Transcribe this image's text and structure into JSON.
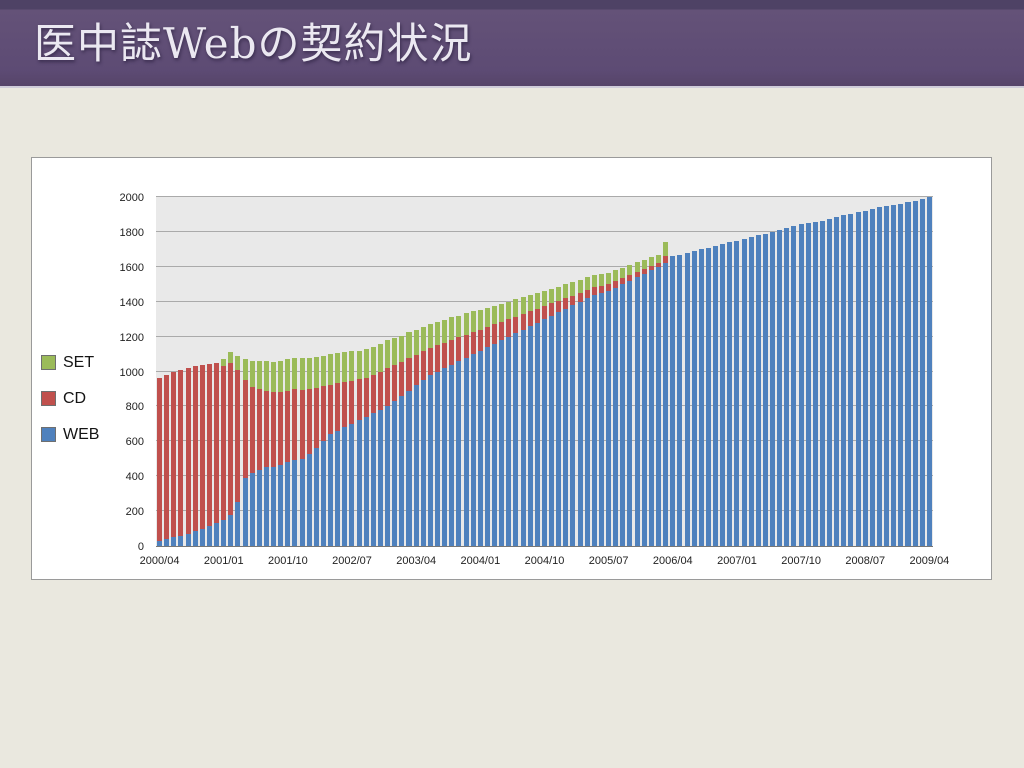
{
  "slide": {
    "title": "医中誌Webの契約状況",
    "title_bar_color": "#5d4b74",
    "background_color": "#eae8df"
  },
  "chart_data": {
    "type": "bar",
    "stacked": true,
    "title": "",
    "xlabel": "",
    "ylabel": "",
    "ylim": [
      0,
      2000
    ],
    "ytick_step": 200,
    "grid": true,
    "plot_bg": "#e9e9e9",
    "legend_position": "left",
    "legend": [
      {
        "label": "SET",
        "color": "#9bbb59"
      },
      {
        "label": "CD",
        "color": "#c0504d"
      },
      {
        "label": "WEB",
        "color": "#4f81bd"
      }
    ],
    "x": [
      "2000/04",
      "2000/05",
      "2000/06",
      "2000/07",
      "2000/08",
      "2000/09",
      "2000/10",
      "2000/11",
      "2000/12",
      "2001/01",
      "2001/02",
      "2001/03",
      "2001/04",
      "2001/05",
      "2001/06",
      "2001/07",
      "2001/08",
      "2001/09",
      "2001/10",
      "2001/11",
      "2001/12",
      "2002/01",
      "2002/02",
      "2002/03",
      "2002/04",
      "2002/05",
      "2002/06",
      "2002/07",
      "2002/08",
      "2002/09",
      "2002/10",
      "2002/11",
      "2002/12",
      "2003/01",
      "2003/02",
      "2003/03",
      "2003/04",
      "2003/05",
      "2003/06",
      "2003/07",
      "2003/08",
      "2003/09",
      "2003/10",
      "2003/11",
      "2003/12",
      "2004/01",
      "2004/02",
      "2004/03",
      "2004/04",
      "2004/05",
      "2004/06",
      "2004/07",
      "2004/08",
      "2004/09",
      "2004/10",
      "2004/11",
      "2004/12",
      "2005/01",
      "2005/02",
      "2005/03",
      "2005/04",
      "2005/05",
      "2005/06",
      "2005/07",
      "2005/08",
      "2005/09",
      "2005/10",
      "2005/11",
      "2005/12",
      "2006/01",
      "2006/02",
      "2006/03",
      "2006/04",
      "2006/05",
      "2006/06",
      "2006/07",
      "2006/08",
      "2006/09",
      "2006/10",
      "2006/11",
      "2006/12",
      "2007/01",
      "2007/02",
      "2007/03",
      "2007/04",
      "2007/05",
      "2007/06",
      "2007/07",
      "2007/08",
      "2007/09",
      "2007/10",
      "2007/11",
      "2007/12",
      "2008/01",
      "2008/02",
      "2008/03",
      "2008/04",
      "2008/05",
      "2008/06",
      "2008/07",
      "2008/08",
      "2008/09",
      "2008/10",
      "2008/11",
      "2008/12",
      "2009/01",
      "2009/02",
      "2009/03",
      "2009/04"
    ],
    "x_tick_labels": [
      "2000/04",
      "2001/01",
      "2001/10",
      "2002/07",
      "2003/04",
      "2004/01",
      "2004/10",
      "2005/07",
      "2006/04",
      "2007/01",
      "2007/10",
      "2008/07",
      "2009/04"
    ],
    "x_tick_indices": [
      0,
      9,
      18,
      27,
      36,
      45,
      54,
      63,
      72,
      81,
      90,
      99,
      108
    ],
    "series": [
      {
        "name": "WEB",
        "color": "#4f81bd",
        "values": [
          30,
          40,
          50,
          60,
          70,
          85,
          100,
          115,
          130,
          150,
          180,
          250,
          390,
          420,
          435,
          450,
          455,
          465,
          480,
          490,
          500,
          530,
          560,
          600,
          640,
          660,
          680,
          700,
          720,
          740,
          760,
          780,
          800,
          830,
          860,
          890,
          920,
          950,
          980,
          1000,
          1020,
          1040,
          1060,
          1080,
          1100,
          1120,
          1140,
          1160,
          1180,
          1200,
          1220,
          1240,
          1260,
          1280,
          1300,
          1320,
          1340,
          1360,
          1380,
          1400,
          1420,
          1440,
          1450,
          1460,
          1480,
          1500,
          1520,
          1540,
          1560,
          1580,
          1600,
          1620,
          1660,
          1670,
          1680,
          1690,
          1700,
          1710,
          1720,
          1730,
          1740,
          1750,
          1760,
          1770,
          1780,
          1790,
          1800,
          1810,
          1820,
          1835,
          1845,
          1850,
          1855,
          1865,
          1875,
          1885,
          1895,
          1905,
          1915,
          1920,
          1930,
          1940,
          1950,
          1955,
          1960,
          1970,
          1980,
          1990,
          2000
        ]
      },
      {
        "name": "CD",
        "color": "#c0504d",
        "values": [
          930,
          940,
          950,
          950,
          950,
          945,
          940,
          930,
          920,
          880,
          870,
          760,
          560,
          490,
          465,
          440,
          430,
          420,
          410,
          410,
          395,
          370,
          345,
          315,
          285,
          275,
          260,
          245,
          235,
          225,
          220,
          220,
          220,
          205,
          195,
          185,
          175,
          165,
          155,
          150,
          145,
          140,
          135,
          130,
          125,
          120,
          115,
          110,
          105,
          100,
          95,
          90,
          85,
          80,
          75,
          70,
          65,
          60,
          55,
          50,
          48,
          45,
          42,
          40,
          38,
          35,
          32,
          30,
          28,
          25,
          22,
          40,
          0,
          0,
          0,
          0,
          0,
          0,
          0,
          0,
          0,
          0,
          0,
          0,
          0,
          0,
          0,
          0,
          0,
          0,
          0,
          0,
          0,
          0,
          0,
          0,
          0,
          0,
          0,
          0,
          0,
          0,
          0,
          0,
          0,
          0,
          0,
          0,
          0
        ]
      },
      {
        "name": "SET",
        "color": "#9bbb59",
        "values": [
          0,
          0,
          0,
          0,
          0,
          0,
          0,
          0,
          0,
          40,
          60,
          80,
          120,
          150,
          160,
          170,
          170,
          175,
          180,
          180,
          180,
          180,
          180,
          175,
          175,
          170,
          170,
          170,
          165,
          165,
          160,
          160,
          160,
          155,
          150,
          150,
          145,
          140,
          135,
          135,
          130,
          130,
          125,
          125,
          120,
          110,
          108,
          105,
          102,
          100,
          98,
          95,
          92,
          90,
          88,
          85,
          82,
          80,
          78,
          75,
          72,
          70,
          68,
          65,
          62,
          60,
          58,
          55,
          52,
          50,
          48,
          80,
          0,
          0,
          0,
          0,
          0,
          0,
          0,
          0,
          0,
          0,
          0,
          0,
          0,
          0,
          0,
          0,
          0,
          0,
          0,
          0,
          0,
          0,
          0,
          0,
          0,
          0,
          0,
          0,
          0,
          0,
          0,
          0,
          0,
          0,
          0,
          0,
          0
        ]
      }
    ]
  }
}
